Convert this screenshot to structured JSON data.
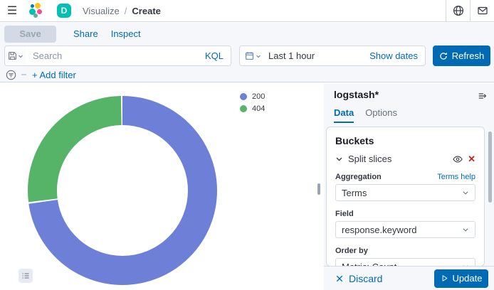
{
  "colors": {
    "primary": "#006bb4",
    "danger": "#bd271e",
    "space_avatar": "#00bfb3",
    "slice_200": "#6e7fd8",
    "slice_404": "#55b467"
  },
  "icons": {
    "menu": "☰",
    "close": "✕",
    "breadcrumb_separator": "/"
  },
  "header": {
    "space_initial": "D",
    "breadcrumb": {
      "section": "Visualize",
      "page": "Create"
    }
  },
  "action_bar": {
    "save": "Save",
    "share": "Share",
    "inspect": "Inspect"
  },
  "query_bar": {
    "search_placeholder": "Search",
    "language": "KQL",
    "time_range": "Last 1 hour",
    "show_dates": "Show dates",
    "refresh": "Refresh"
  },
  "filter_bar": {
    "add_filter": "+ Add filter"
  },
  "chart_data": {
    "type": "pie",
    "subtype": "donut",
    "categories": [
      "200",
      "404"
    ],
    "values": [
      73,
      27
    ],
    "unit": "percent (estimated from arc angles)",
    "colors": [
      "#6e7fd8",
      "#55b467"
    ],
    "legend_position": "top-right",
    "inner_radius_ratio": 0.69,
    "start_angle_deg": 0,
    "direction": "clockwise"
  },
  "sidebar": {
    "index_pattern": "logstash*",
    "tabs": [
      {
        "label": "Data",
        "active": true
      },
      {
        "label": "Options",
        "active": false
      }
    ],
    "buckets": {
      "title": "Buckets",
      "bucket_label": "Split slices",
      "aggregation_label": "Aggregation",
      "aggregation_help": "Terms help",
      "aggregation_value": "Terms",
      "field_label": "Field",
      "field_value": "response.keyword",
      "order_by_label": "Order by",
      "order_by_value": "Metric: Count"
    },
    "footer": {
      "discard": "Discard",
      "update": "Update"
    }
  }
}
